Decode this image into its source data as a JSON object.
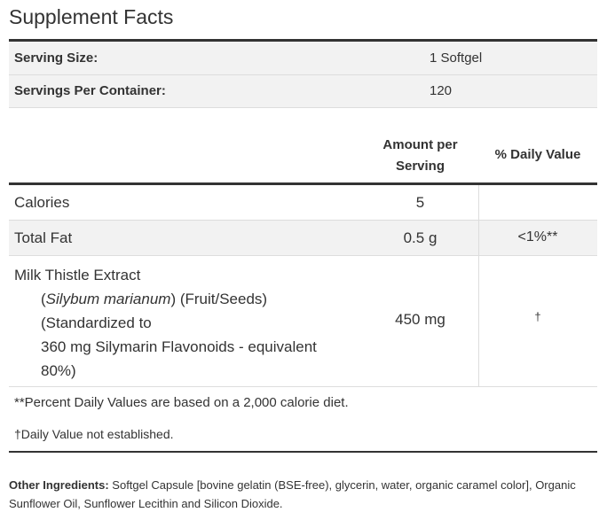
{
  "title": "Supplement Facts",
  "serving": [
    {
      "label": "Serving Size:",
      "value": "1 Softgel"
    },
    {
      "label": "Servings Per Container:",
      "value": "120"
    }
  ],
  "header": {
    "amount_lines": [
      "Amount per",
      "Serving"
    ],
    "daily_value": "% Daily Value"
  },
  "rows": [
    {
      "name": "Calories",
      "amount": "5",
      "dv": ""
    },
    {
      "name": "Total Fat",
      "amount": "0.5 g",
      "dv": "<1%**"
    }
  ],
  "milk_thistle": {
    "name": "Milk Thistle Extract",
    "open": "(",
    "latin": "Silybum marianum",
    "part": ") (Fruit/Seeds)",
    "standardized": [
      "(Standardized to",
      "360 mg Silymarin Flavonoids - equivalent 80%)"
    ],
    "amount": "450 mg",
    "dv": "†"
  },
  "footnotes": [
    "**Percent Daily Values are based on a 2,000 calorie diet.",
    "†Daily Value not established."
  ],
  "other_ingredients": {
    "label": "Other Ingredients:",
    "text": " Softgel Capsule [bovine gelatin (BSE-free), glycerin, water, organic caramel color], Organic Sunflower Oil, Sunflower Lecithin and Silicon Dioxide."
  }
}
